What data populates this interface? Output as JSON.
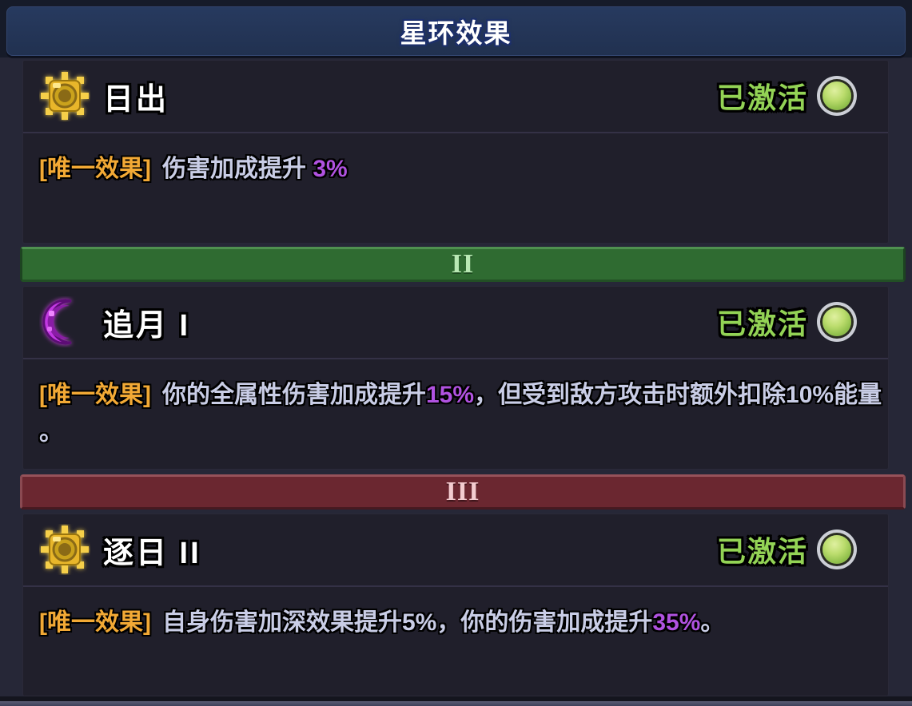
{
  "header": {
    "title": "星环效果"
  },
  "panels": [
    {
      "icon": "sun-icon",
      "title": "日出",
      "status": "已激活",
      "label": "[唯一效果]",
      "lines": [
        [
          {
            "t": "伤害加成提升 "
          },
          {
            "t": "3%",
            "hl": true
          }
        ]
      ]
    },
    {
      "icon": "moon-icon",
      "title": "追月 I",
      "status": "已激活",
      "label": "[唯一效果]",
      "lines": [
        [
          {
            "t": "你的全属性伤害加成提升"
          },
          {
            "t": "15%",
            "hl": true
          },
          {
            "t": "，但受到敌方攻击时额外扣除10%能量"
          }
        ],
        [
          {
            "t": "。"
          }
        ]
      ]
    },
    {
      "icon": "sun-icon",
      "title": "逐日 II",
      "status": "已激活",
      "label": "[唯一效果]",
      "lines": [
        [
          {
            "t": "自身伤害加深效果提升5%，你的伤害加成提升"
          },
          {
            "t": "35%",
            "hl": true
          },
          {
            "t": "。"
          }
        ]
      ]
    }
  ],
  "dividers": [
    {
      "numeral": "II",
      "color": "#2f6b31"
    },
    {
      "numeral": "III",
      "color": "#6b2730"
    }
  ],
  "colors": {
    "status_active": "#93d355",
    "highlight_purple": "#b052e0",
    "effect_label_orange": "#f2a935",
    "body_text": "#c9cde6",
    "header_bg": "#243355",
    "panel_bg": "#201f2b",
    "orb_green": "#a9d45f"
  }
}
